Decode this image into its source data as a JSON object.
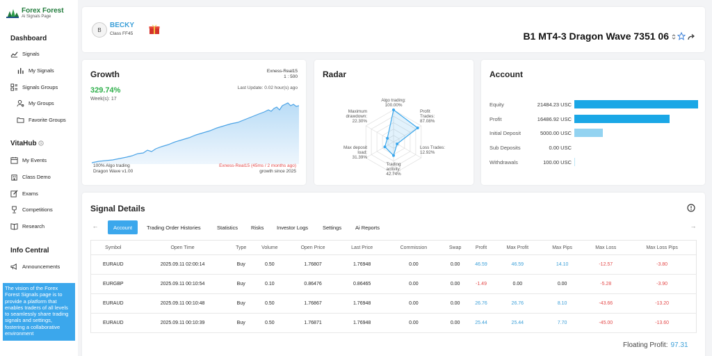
{
  "sidebar": {
    "logo_title": "Forex Forest",
    "logo_sub": "Ai Signals Page",
    "sections": {
      "dashboard": "Dashboard",
      "vitahub": "VitaHub",
      "info": "Info Central"
    },
    "items": {
      "signals": "Signals",
      "my_signals": "My Signals",
      "signals_groups": "Signals Groups",
      "my_groups": "My Groups",
      "favorite_groups": "Favorite Groups",
      "my_events": "My Events",
      "class_demo": "Class Demo",
      "exams": "Exams",
      "competitions": "Competitions",
      "research": "Research",
      "announcements": "Announcements"
    },
    "info_text": "The vision of the Forex Forest Signals page is to provide a platform that enables traders of all levels to seamlessly share trading signals and settings, fostering a collaborative environment"
  },
  "header": {
    "avatar": "B",
    "user_name": "BECKY",
    "user_class": "Class FF45",
    "signal_title": "B1 MT4-3 Dragon Wave 7351 06"
  },
  "growth": {
    "title": "Growth",
    "value": "329.74%",
    "weeks": "Week(s): 17",
    "account_name": "Exness-Real15",
    "leverage": "1 : 500",
    "last_update": "Last Update: 0.02 hour(s) ago",
    "foot_left_1": "100% Algo trading",
    "foot_left_2": "Dragon Wave v1.00",
    "foot_right_1": "Exness-Real15 (45ms / 2 months ago)",
    "foot_right_2": "growth since 2025"
  },
  "radar": {
    "title": "Radar",
    "axes": [
      {
        "name": "Algo trading:",
        "value": 100.0,
        "label": "100.00%"
      },
      {
        "name": "Profit Trades:",
        "value": 87.08,
        "label": "87.08%"
      },
      {
        "name": "Loss Trades:",
        "value": 12.92,
        "label": "12.92%"
      },
      {
        "name": "Trading activity:",
        "value": 42.74,
        "label": "42.74%"
      },
      {
        "name": "Max deposit load:",
        "value": 31.39,
        "label": "31.39%"
      },
      {
        "name": "Maximum drawdown:",
        "value": 22.3,
        "label": "22.30%"
      }
    ]
  },
  "account": {
    "title": "Account",
    "rows": [
      {
        "label": "Equity",
        "value": "21484.23 USC",
        "fraction": 1.0,
        "color": "#1aa7e6"
      },
      {
        "label": "Profit",
        "value": "16486.92 USC",
        "fraction": 0.767,
        "color": "#1aa7e6"
      },
      {
        "label": "Initial Deposit",
        "value": "5000.00 USC",
        "fraction": 0.233,
        "color": "#93d3f1"
      },
      {
        "label": "Sub Deposits",
        "value": "0.00 USC",
        "fraction": 0.0,
        "color": "#93d3f1"
      },
      {
        "label": "Withdrawals",
        "value": "100.00 USC",
        "fraction": 0.005,
        "color": "#bfe6f6"
      }
    ]
  },
  "signal_details": {
    "title": "Signal Details",
    "tabs": [
      "Account",
      "Trading Order Histories",
      "Statistics",
      "Risks",
      "Investor Logs",
      "Settings",
      "Ai Reports"
    ],
    "columns": [
      "Symbol",
      "Open Time",
      "Type",
      "Volume",
      "Open Price",
      "Last Price",
      "Commission",
      "Swap",
      "Profit",
      "Max Profit",
      "Max Pips",
      "Max Loss",
      "Max Loss Pips"
    ],
    "rows": [
      [
        "EURAUD",
        "2025.09.11 02:00:14",
        "Buy",
        "0.50",
        "1.76807",
        "1.76948",
        "0.00",
        "0.00",
        "46.59",
        "46.59",
        "14.10",
        "-12.57",
        "-3.80"
      ],
      [
        "EURGBP",
        "2025.09.11 00:10:54",
        "Buy",
        "0.10",
        "0.86476",
        "0.86465",
        "0.00",
        "0.00",
        "-1.49",
        "0.00",
        "0.00",
        "-5.28",
        "-3.90"
      ],
      [
        "EURAUD",
        "2025.09.11 00:10:48",
        "Buy",
        "0.50",
        "1.76867",
        "1.76948",
        "0.00",
        "0.00",
        "26.76",
        "26.76",
        "8.10",
        "-43.66",
        "-13.20"
      ],
      [
        "EURAUD",
        "2025.09.11 00:10:39",
        "Buy",
        "0.50",
        "1.76871",
        "1.76948",
        "0.00",
        "0.00",
        "25.44",
        "25.44",
        "7.70",
        "-45.00",
        "-13.60"
      ]
    ],
    "floating_label": "Floating Profit:",
    "floating_value": "97.31"
  },
  "colors": {
    "accent": "#3ba7ec",
    "positive": "#3b9fd8",
    "negative": "#e34848",
    "growth": "#2eaf4a"
  }
}
